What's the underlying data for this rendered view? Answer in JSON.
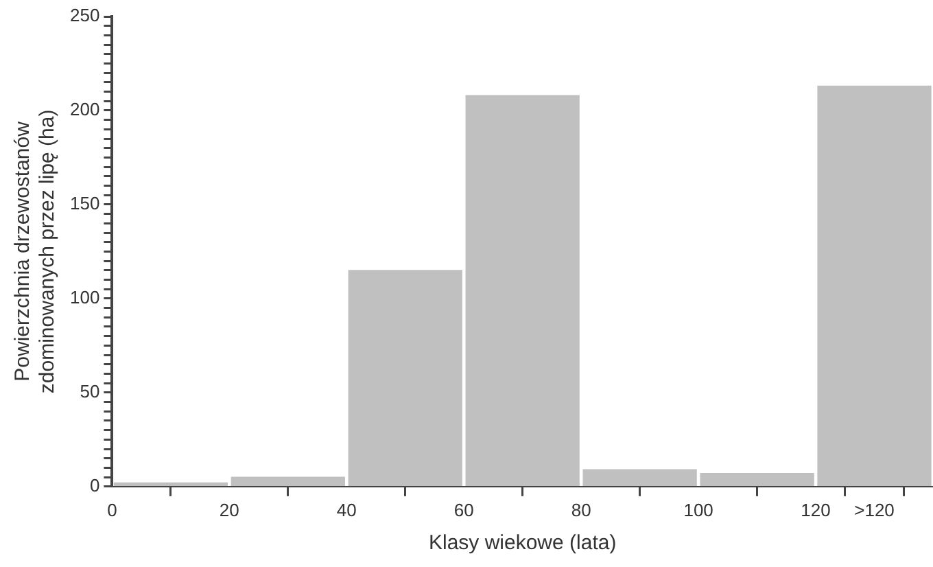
{
  "chart_data": {
    "type": "histogram",
    "xlabel": "Klasy wiekowe (lata)",
    "ylabel": "Powierzchnia drzewostanów zdominowanych przez lipę (ha)",
    "bins": [
      0,
      20,
      40,
      60,
      80,
      100,
      120,
      140
    ],
    "values": [
      2,
      5,
      115,
      208,
      9,
      7,
      213
    ],
    "color": "#c0c0c0",
    "xlim": [
      0,
      140
    ],
    "xticks": [
      0,
      20,
      40,
      60,
      80,
      100,
      120,
      {
        "value": 130,
        "label": ">120"
      }
    ],
    "ylim": [
      0,
      250
    ],
    "yticks": [
      0,
      {
        "value": 5,
        "label": null
      },
      {
        "value": 10,
        "label": null
      },
      {
        "value": 15,
        "label": null
      },
      {
        "value": 20,
        "label": null
      },
      {
        "value": 25,
        "label": null
      },
      {
        "value": 30,
        "label": null
      },
      {
        "value": 35,
        "label": null
      },
      {
        "value": 40,
        "label": null
      },
      {
        "value": 45,
        "label": null
      },
      50,
      {
        "value": 55,
        "label": null
      },
      {
        "value": 60,
        "label": null
      },
      {
        "value": 65,
        "label": null
      },
      {
        "value": 70,
        "label": null
      },
      {
        "value": 75,
        "label": null
      },
      {
        "value": 80,
        "label": null
      },
      {
        "value": 85,
        "label": null
      },
      {
        "value": 90,
        "label": null
      },
      {
        "value": 95,
        "label": null
      },
      100,
      {
        "value": 105,
        "label": null
      },
      {
        "value": 110,
        "label": null
      },
      {
        "value": 115,
        "label": null
      },
      {
        "value": 120,
        "label": null
      },
      {
        "value": 125,
        "label": null
      },
      {
        "value": 130,
        "label": null
      },
      {
        "value": 135,
        "label": null
      },
      {
        "value": 140,
        "label": null
      },
      {
        "value": 145,
        "label": null
      },
      150,
      {
        "value": 155,
        "label": null
      },
      {
        "value": 160,
        "label": null
      },
      {
        "value": 165,
        "label": null
      },
      {
        "value": 170,
        "label": null
      },
      {
        "value": 175,
        "label": null
      },
      {
        "value": 180,
        "label": null
      },
      {
        "value": 185,
        "label": null
      },
      {
        "value": 190,
        "label": null
      },
      {
        "value": 195,
        "label": null
      },
      200,
      {
        "value": 205,
        "label": null
      },
      {
        "value": 210,
        "label": null
      },
      {
        "value": 215,
        "label": null
      },
      {
        "value": 220,
        "label": null
      },
      {
        "value": 225,
        "label": null
      },
      {
        "value": 230,
        "label": null
      },
      {
        "value": 235,
        "label": null
      },
      {
        "value": 240,
        "label": null
      },
      {
        "value": 245,
        "label": null
      },
      250
    ],
    "grid": false,
    "legend": false
  }
}
